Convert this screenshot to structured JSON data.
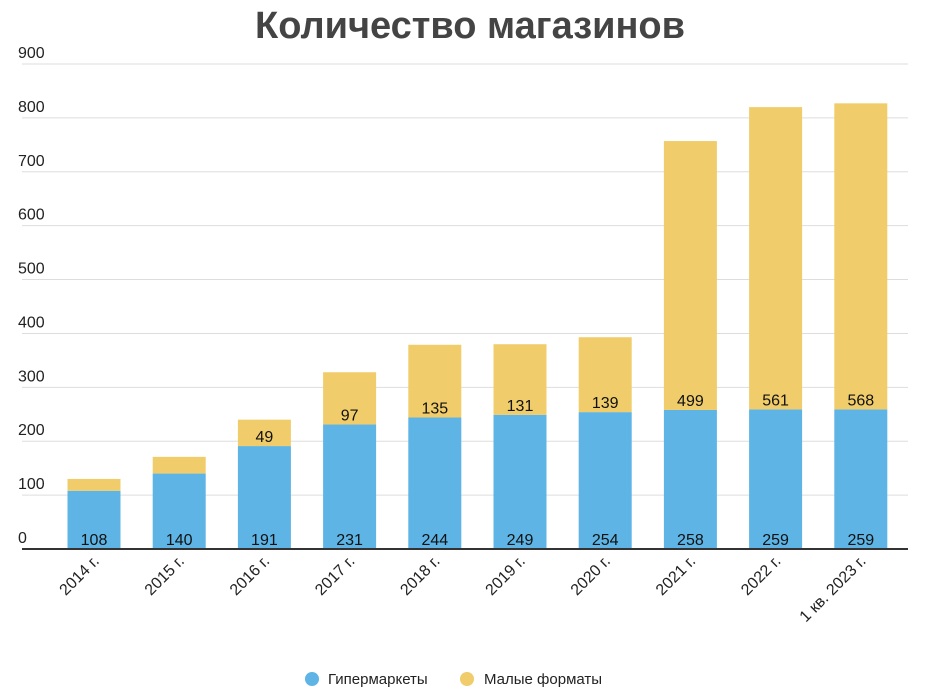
{
  "chart_data": {
    "type": "bar",
    "stacked": true,
    "title": "Количество магазинов",
    "categories": [
      "2014 г.",
      "2015 г.",
      "2016 г.",
      "2017 г.",
      "2018 г.",
      "2019 г.",
      "2020 г.",
      "2021 г.",
      "2022 г.",
      "1 кв. 2023 г."
    ],
    "series": [
      {
        "name": "Гипермаркеты",
        "color": "#5db4e5",
        "values": [
          108,
          140,
          191,
          231,
          244,
          249,
          254,
          258,
          259,
          259
        ],
        "labels": [
          "108",
          "140",
          "191",
          "231",
          "244",
          "249",
          "254",
          "258",
          "259",
          "259"
        ]
      },
      {
        "name": "Малые форматы",
        "color": "#f0cc6a",
        "values": [
          22,
          31,
          49,
          97,
          135,
          131,
          139,
          499,
          561,
          568
        ],
        "labels": [
          "",
          "",
          "49",
          "97",
          "135",
          "131",
          "139",
          "499",
          "561",
          "568"
        ]
      }
    ],
    "ylim": [
      0,
      900
    ],
    "yticks": [
      "0",
      "100",
      "200",
      "300",
      "400",
      "500",
      "600",
      "700",
      "800",
      "900"
    ],
    "grid": true,
    "legend_position": "bottom"
  }
}
